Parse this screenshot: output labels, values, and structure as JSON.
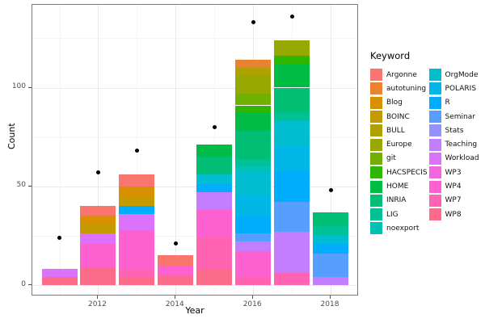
{
  "figure": {
    "background": "#FFFFFF",
    "panel_border_color": "#7A7A7A",
    "grid_major_color": "#EBEBEB",
    "grid_minor_color": "#F4F4F4",
    "tick_label_color": "#4D4D4D",
    "axis_title_color": "#000000",
    "point_color": "#000000"
  },
  "axes": {
    "x_title": "Year",
    "y_title": "Count",
    "x_tick_labels": [
      "2012",
      "2014",
      "2016",
      "2018"
    ],
    "y_tick_labels": [
      "0",
      "50",
      "100"
    ]
  },
  "legend": {
    "title": "Keyword",
    "column1": [
      "Argonne",
      "autotuning",
      "Blog",
      "BOINC",
      "BULL",
      "Europe",
      "git",
      "HACSPECIS",
      "HOME",
      "INRIA",
      "LIG",
      "noexport"
    ],
    "column2": [
      "OrgMode",
      "POLARIS",
      "R",
      "Seminar",
      "Stats",
      "Teaching",
      "Workload",
      "WP3",
      "WP4",
      "WP7",
      "WP8"
    ]
  },
  "chart_data": {
    "type": "bar",
    "subtype": "stacked-bars-with-point-overlay",
    "title": "",
    "xlabel": "Year",
    "ylabel": "Count",
    "legend_title": "Keyword",
    "legend_position": "right",
    "grid": true,
    "x": [
      2011,
      2012,
      2013,
      2014,
      2015,
      2016,
      2017,
      2018
    ],
    "x_major_ticks": [
      2012,
      2014,
      2016,
      2018
    ],
    "y_major_ticks": [
      0,
      50,
      100
    ],
    "y_minor_ticks": [
      25,
      75,
      125
    ],
    "ylim": [
      -6,
      142
    ],
    "bar_totals": [
      8,
      40,
      56,
      15,
      71,
      114,
      124,
      37
    ],
    "point_values": [
      24,
      57,
      68,
      21,
      80,
      133,
      136,
      48
    ],
    "keywords": [
      "Argonne",
      "autotuning",
      "Blog",
      "BOINC",
      "BULL",
      "Europe",
      "git",
      "HACSPECIS",
      "HOME",
      "INRIA",
      "LIG",
      "noexport",
      "OrgMode",
      "POLARIS",
      "R",
      "Seminar",
      "Stats",
      "Teaching",
      "Workload",
      "WP3",
      "WP4",
      "WP7",
      "WP8"
    ],
    "colors": {
      "Argonne": "#F8766D",
      "autotuning": "#EA8331",
      "Blog": "#D89000",
      "BOINC": "#C49A00",
      "BULL": "#AFA100",
      "Europe": "#97A900",
      "git": "#71B000",
      "HACSPECIS": "#2FB600",
      "HOME": "#00BB44",
      "INRIA": "#00BF74",
      "LIG": "#00C096",
      "noexport": "#00C1B2",
      "OrgMode": "#00BDD0",
      "POLARIS": "#00B7E8",
      "R": "#00ACFC",
      "Seminar": "#579FFF",
      "Stats": "#9590FF",
      "Teaching": "#C27EFF",
      "Workload": "#DC71FB",
      "WP3": "#F165E1",
      "WP4": "#FC61CF",
      "WP7": "#FF63B2",
      "WP8": "#FC6B8A"
    },
    "stacks": [
      {
        "year": 2011,
        "segments": [
          [
            "WP8",
            4
          ],
          [
            "Workload",
            4
          ]
        ]
      },
      {
        "year": 2012,
        "segments": [
          [
            "WP8",
            9
          ],
          [
            "WP4",
            12
          ],
          [
            "Workload",
            5
          ],
          [
            "BOINC",
            5
          ],
          [
            "Blog",
            4
          ],
          [
            "Argonne",
            5
          ]
        ]
      },
      {
        "year": 2013,
        "segments": [
          [
            "WP8",
            4
          ],
          [
            "WP7",
            4
          ],
          [
            "WP4",
            20
          ],
          [
            "Workload",
            8
          ],
          [
            "R",
            4
          ],
          [
            "BOINC",
            5
          ],
          [
            "Blog",
            5
          ],
          [
            "Argonne",
            6
          ]
        ]
      },
      {
        "year": 2014,
        "segments": [
          [
            "WP8",
            5
          ],
          [
            "WP4",
            5
          ],
          [
            "Argonne",
            5
          ]
        ]
      },
      {
        "year": 2015,
        "segments": [
          [
            "WP8",
            8
          ],
          [
            "WP7",
            16
          ],
          [
            "WP4",
            14
          ],
          [
            "Teaching",
            9
          ],
          [
            "R",
            4
          ],
          [
            "OrgMode",
            5
          ],
          [
            "INRIA",
            9
          ],
          [
            "HOME",
            6
          ]
        ]
      },
      {
        "year": 2016,
        "segments": [
          [
            "WP7",
            4
          ],
          [
            "WP4",
            13
          ],
          [
            "Teaching",
            5
          ],
          [
            "Seminar",
            4
          ],
          [
            "R",
            9
          ],
          [
            "POLARIS",
            11
          ],
          [
            "OrgMode",
            12
          ],
          [
            "noexport",
            2
          ],
          [
            "LIG",
            4
          ],
          [
            "INRIA",
            14
          ],
          [
            "HOME",
            9
          ],
          [
            "HACSPECIS",
            4
          ],
          [
            "git",
            6
          ],
          [
            "Europe",
            9
          ],
          [
            "BULL",
            4
          ],
          [
            "autotuning",
            4
          ]
        ]
      },
      {
        "year": 2017,
        "segments": [
          [
            "WP7",
            6
          ],
          [
            "Teaching",
            21
          ],
          [
            "Seminar",
            15
          ],
          [
            "R",
            16
          ],
          [
            "POLARIS",
            12
          ],
          [
            "OrgMode",
            13
          ],
          [
            "LIG",
            4
          ],
          [
            "INRIA",
            13
          ],
          [
            "HOME",
            12
          ],
          [
            "HACSPECIS",
            4
          ],
          [
            "Europe",
            8
          ]
        ]
      },
      {
        "year": 2018,
        "segments": [
          [
            "Teaching",
            4
          ],
          [
            "Seminar",
            12
          ],
          [
            "R",
            5
          ],
          [
            "OrgMode",
            4
          ],
          [
            "LIG",
            5
          ],
          [
            "INRIA",
            7
          ]
        ]
      }
    ]
  }
}
